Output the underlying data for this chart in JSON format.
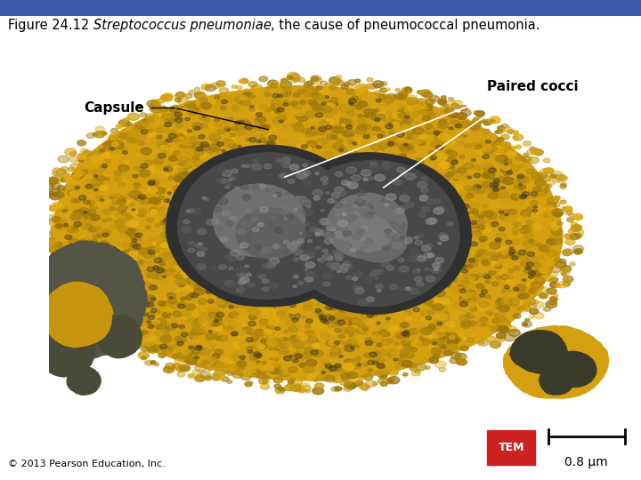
{
  "title_normal_before": "Figure 24.12 ",
  "title_italic_part": "Streptococcus pneumoniae",
  "title_normal_after": ", the cause of pneumococcal pneumonia.",
  "title_fontsize": 10.5,
  "header_bar_color": "#3b5baa",
  "body_bg_color": "#ffffff",
  "label_paired_cocci": "Paired cocci",
  "label_capsule": "Capsule",
  "label_fontsize": 11,
  "label_fontweight": "bold",
  "label_color": "#000000",
  "copyright_text": "© 2013 Pearson Education, Inc.",
  "copyright_fontsize": 8,
  "tem_label": "TEM",
  "tem_bg_color": "#cc2222",
  "tem_text_color": "#ffffff",
  "tem_fontsize": 9,
  "scale_label": "0.8 μm",
  "scale_fontsize": 10,
  "fig_width": 7.2,
  "fig_height": 5.4,
  "dpi": 100
}
